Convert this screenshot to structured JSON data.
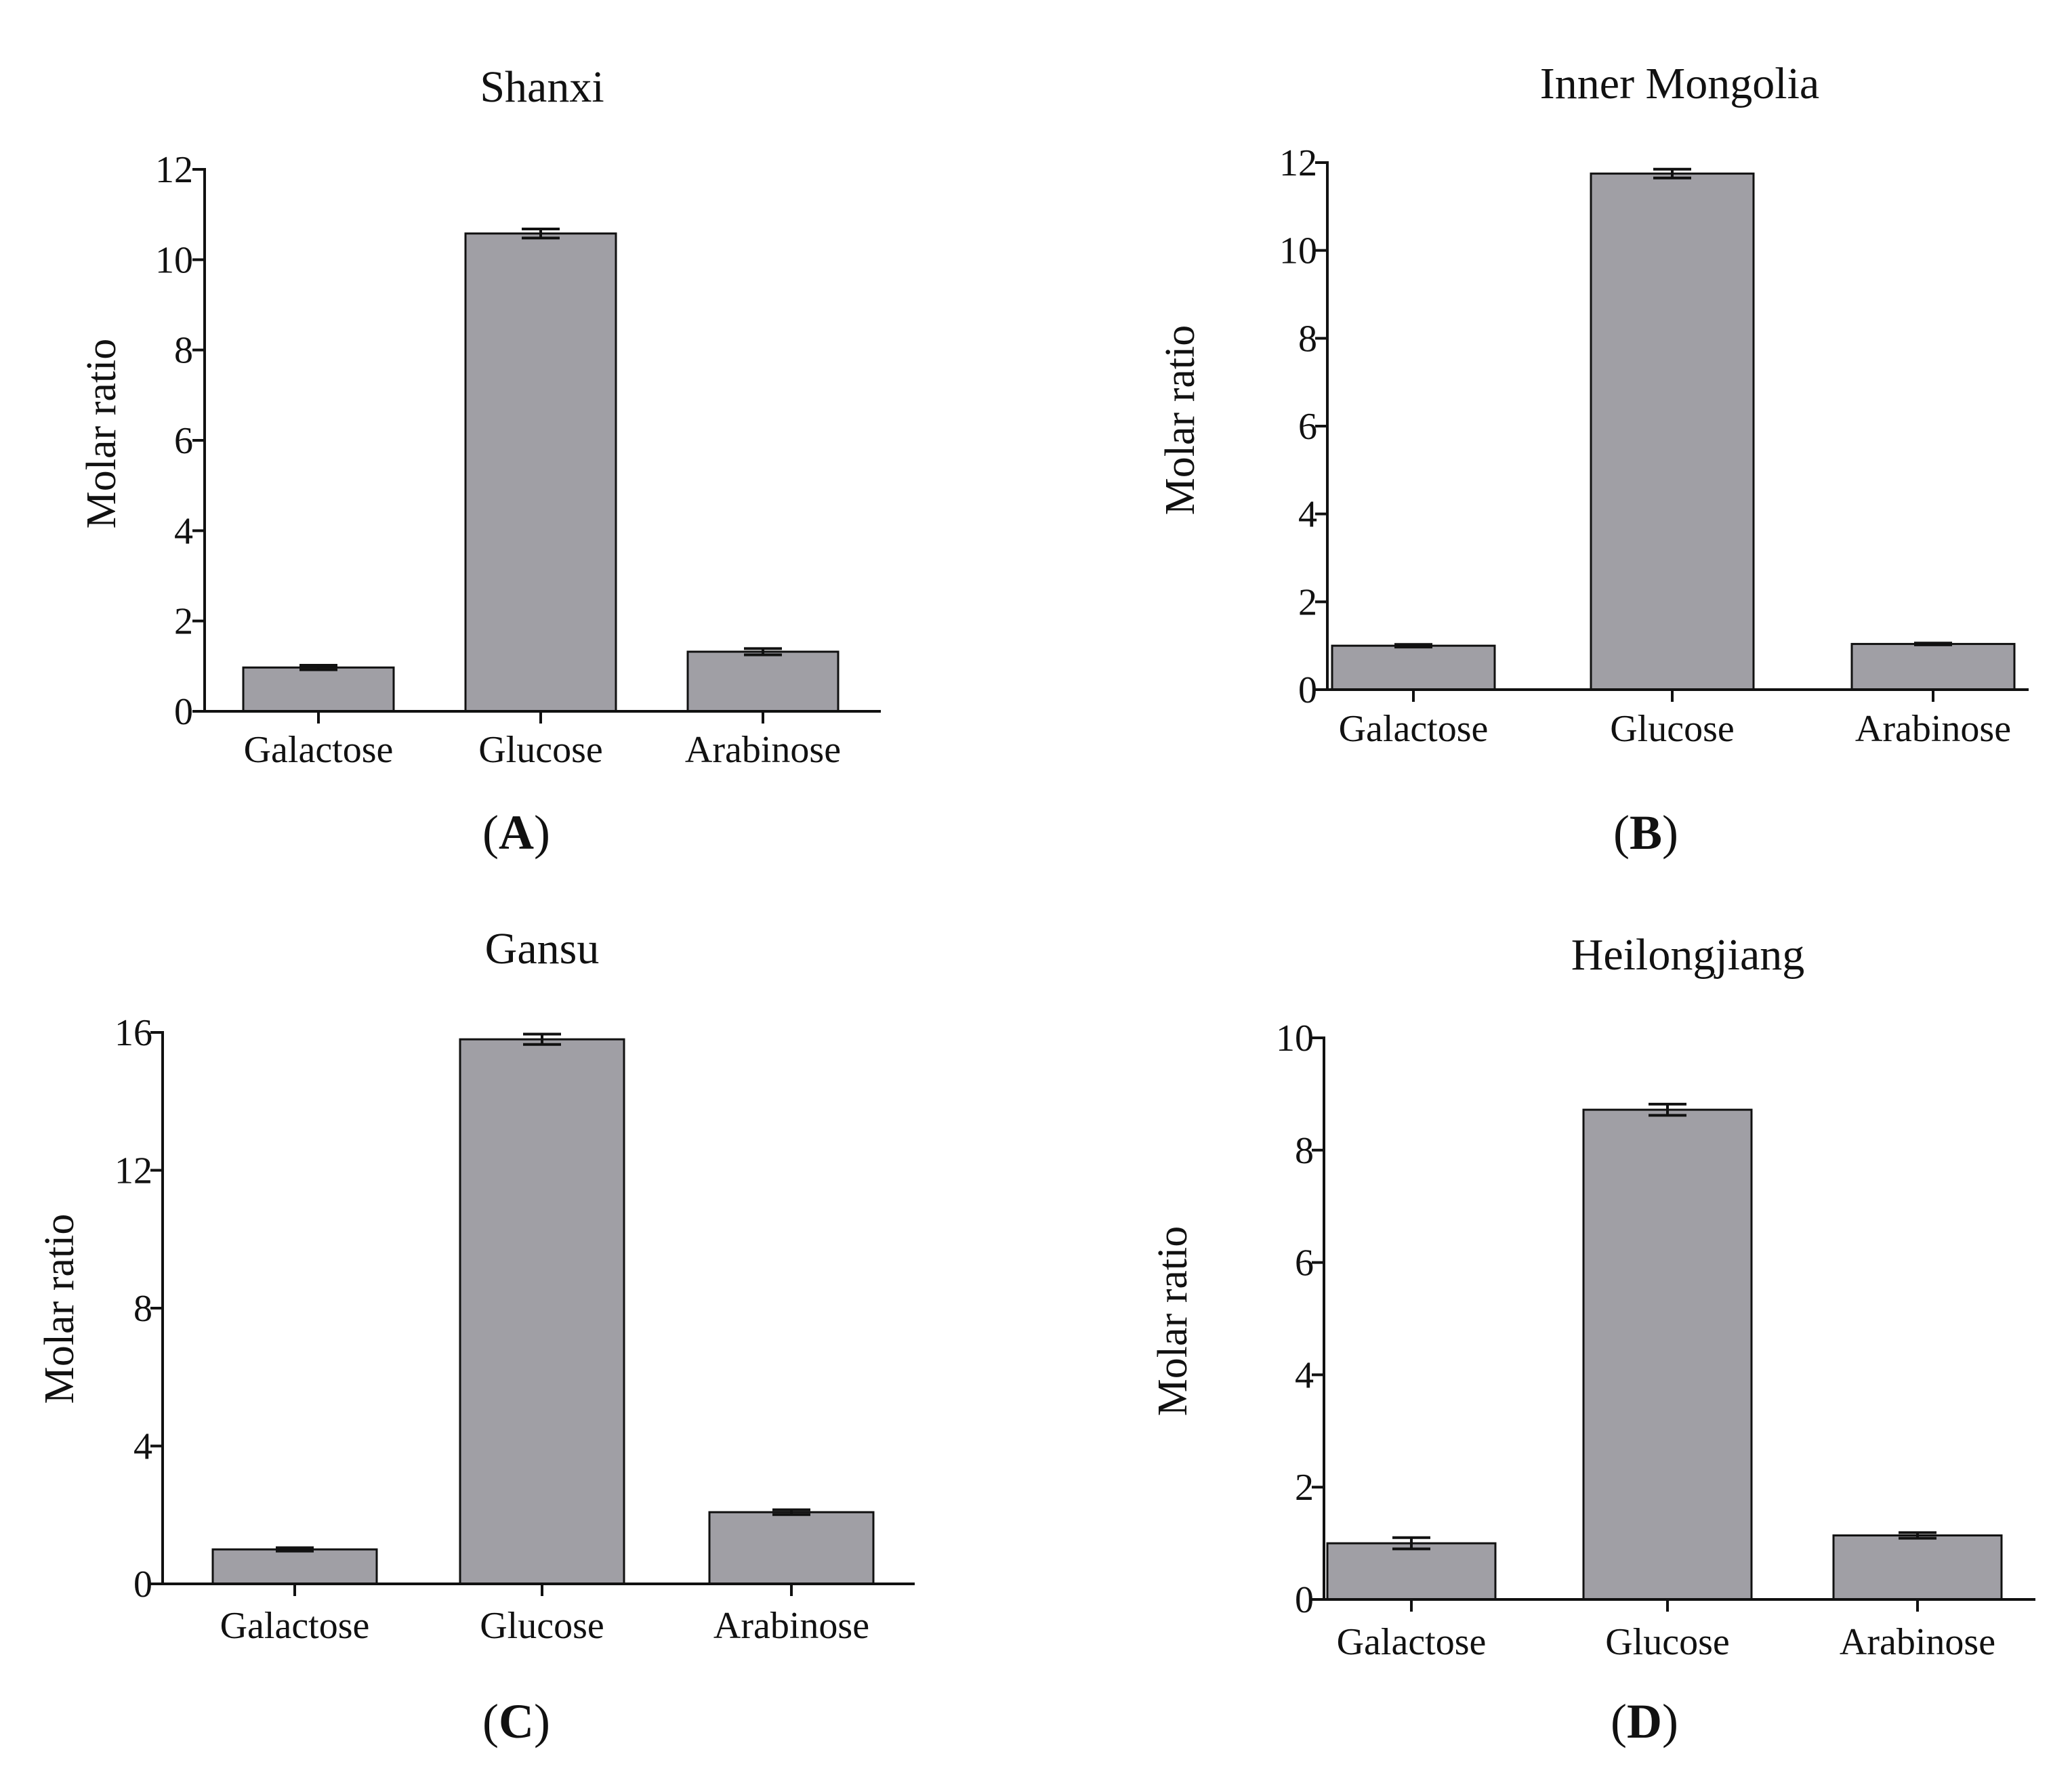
{
  "bar_color": "#a09fa5",
  "axis_color": "#111111",
  "chart_data": [
    {
      "type": "bar",
      "title": "Shanxi",
      "panel_letter": "A",
      "xlabel": "",
      "ylabel": "Molar ratio",
      "categories": [
        "Galactose",
        "Glucose",
        "Arabinose"
      ],
      "values": [
        0.97,
        10.58,
        1.32
      ],
      "errors": [
        0.05,
        0.1,
        0.07
      ],
      "ylim": [
        0,
        12
      ],
      "yticks": [
        0,
        2,
        4,
        6,
        8,
        10,
        12
      ]
    },
    {
      "type": "bar",
      "title": "Inner Mongolia",
      "panel_letter": "B",
      "xlabel": "",
      "ylabel": "Molar ratio",
      "categories": [
        "Galactose",
        "Glucose",
        "Arabinose"
      ],
      "values": [
        1.0,
        11.75,
        1.04
      ],
      "errors": [
        0.03,
        0.1,
        0.02
      ],
      "ylim": [
        0,
        12
      ],
      "yticks": [
        0,
        2,
        4,
        6,
        8,
        10,
        12
      ]
    },
    {
      "type": "bar",
      "title": "Gansu",
      "panel_letter": "C",
      "xlabel": "",
      "ylabel": "Molar ratio",
      "categories": [
        "Galactose",
        "Glucose",
        "Arabinose"
      ],
      "values": [
        1.0,
        15.8,
        2.08
      ],
      "errors": [
        0.05,
        0.15,
        0.07
      ],
      "ylim": [
        0,
        16
      ],
      "yticks": [
        0,
        4,
        8,
        12,
        16
      ]
    },
    {
      "type": "bar",
      "title": "Heilongjiang",
      "panel_letter": "D",
      "xlabel": "",
      "ylabel": "Molar ratio",
      "categories": [
        "Galactose",
        "Glucose",
        "Arabinose"
      ],
      "values": [
        1.0,
        8.72,
        1.14
      ],
      "errors": [
        0.1,
        0.1,
        0.05
      ],
      "ylim": [
        0,
        10
      ],
      "yticks": [
        0,
        2,
        4,
        6,
        8,
        10
      ]
    }
  ]
}
